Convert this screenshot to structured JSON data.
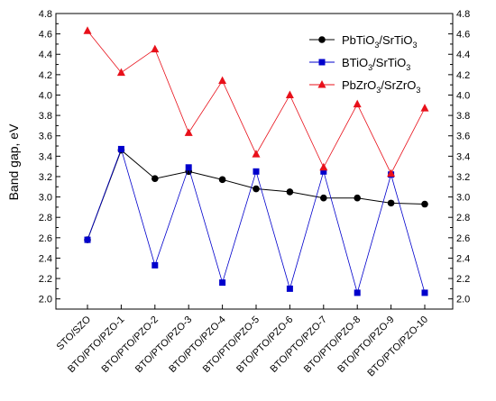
{
  "chart_data": {
    "type": "line",
    "ylabel": "Band gap, eV",
    "xlabel": "",
    "ylim": [
      1.9,
      4.8
    ],
    "yticks": [
      2.0,
      2.2,
      2.4,
      2.6,
      2.8,
      3.0,
      3.2,
      3.4,
      3.6,
      3.8,
      4.0,
      4.2,
      4.4,
      4.6,
      4.8
    ],
    "ytick_labels": [
      "2.0",
      "2.2",
      "2.4",
      "2.6",
      "2.8",
      "3.0",
      "3.2",
      "3.4",
      "3.6",
      "3.8",
      "4.0",
      "4.2",
      "4.4",
      "4.6",
      "4.8"
    ],
    "categories": [
      "STO/SZO",
      "BTO/PTO/PZO-1",
      "BTO/PTO/PZO-2",
      "BTO/PTO/PZO-3",
      "BTO/PTO/PZO-4",
      "BTO/PTO/PZO-5",
      "BTO/PTO/PZO-6",
      "BTO/PTO/PZO-7",
      "BTO/PTO/PZO-8",
      "BTO/PTO/PZO-9",
      "BTO/PTO/PZO-10"
    ],
    "legend_position": "top-right",
    "grid": false,
    "series": [
      {
        "name": "PbTiO3/SrTiO3",
        "legend": {
          "main": "PbTiO",
          "sub1": "3",
          "mid": "/SrTiO",
          "sub2": "3"
        },
        "color": "#000000",
        "marker": "circle",
        "values": [
          2.58,
          3.46,
          3.18,
          3.25,
          3.17,
          3.08,
          3.05,
          2.99,
          2.99,
          2.94,
          2.93
        ]
      },
      {
        "name": "BTiO3/SrTiO3",
        "legend": {
          "main": "BTiO",
          "sub1": "3",
          "mid": "/SrTiO",
          "sub2": "3"
        },
        "color": "#0000cc",
        "marker": "square",
        "values": [
          2.58,
          3.47,
          2.33,
          3.29,
          2.16,
          3.25,
          2.1,
          3.25,
          2.06,
          3.22,
          2.06
        ]
      },
      {
        "name": "PbZrO3/SrZrO3",
        "legend": {
          "main": "PbZrO",
          "sub1": "3",
          "mid": "/SrZrO",
          "sub2": "3"
        },
        "color": "#e8101a",
        "marker": "triangle",
        "values": [
          4.63,
          4.22,
          4.45,
          3.63,
          4.14,
          3.42,
          4.0,
          3.29,
          3.91,
          3.23,
          3.87
        ]
      }
    ]
  }
}
